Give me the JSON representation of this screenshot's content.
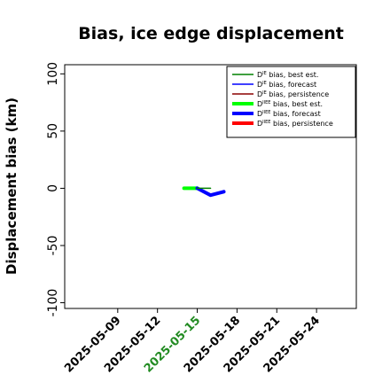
{
  "chart_data": {
    "type": "line",
    "title": "Bias, ice edge displacement",
    "xlabel": "",
    "ylabel": "Displacement bias (km)",
    "ylim": [
      -105,
      108
    ],
    "xlim": [
      "2025-05-05",
      "2025-05-27"
    ],
    "yticks": [
      "-100",
      "-50",
      "0",
      "50",
      "100"
    ],
    "ytick_values": [
      -100,
      -50,
      0,
      50,
      100
    ],
    "xticks": [
      "2025-05-09",
      "2025-05-12",
      "2025-05-15",
      "2025-05-18",
      "2025-05-21",
      "2025-05-24"
    ],
    "highlighted_xtick": "2025-05-15",
    "highlight_color": "#228b22",
    "grid": false,
    "legend_position": "top-right",
    "legend": [
      {
        "prefix": "D",
        "sup": "IE",
        "label": " bias, best est.",
        "color": "#008000",
        "width": 1.5
      },
      {
        "prefix": "D",
        "sup": "IE",
        "label": " bias, forecast",
        "color": "#0000ff",
        "width": 1.5
      },
      {
        "prefix": "D",
        "sup": "IE",
        "label": " bias, persistence",
        "color": "#8b0000",
        "width": 1.5
      },
      {
        "prefix": "D",
        "sup": "IIEE",
        "label": " bias, best est.",
        "color": "#00ff00",
        "width": 4
      },
      {
        "prefix": "D",
        "sup": "IIEE",
        "label": " bias, forecast",
        "color": "#0000ff",
        "width": 4
      },
      {
        "prefix": "D",
        "sup": "IIEE",
        "label": " bias, persistence",
        "color": "#ff0000",
        "width": 4
      }
    ],
    "series": [
      {
        "color": "#00ff00",
        "width": 4,
        "x": [
          "2025-05-14",
          "2025-05-15"
        ],
        "y": [
          0,
          0
        ]
      },
      {
        "color": "#0000ff",
        "width": 4,
        "x": [
          "2025-05-15",
          "2025-05-16",
          "2025-05-17"
        ],
        "y": [
          0,
          -6,
          -3
        ]
      },
      {
        "color": "#008000",
        "width": 1.5,
        "x": [
          "2025-05-15",
          "2025-05-16"
        ],
        "y": [
          0,
          0
        ]
      }
    ]
  }
}
